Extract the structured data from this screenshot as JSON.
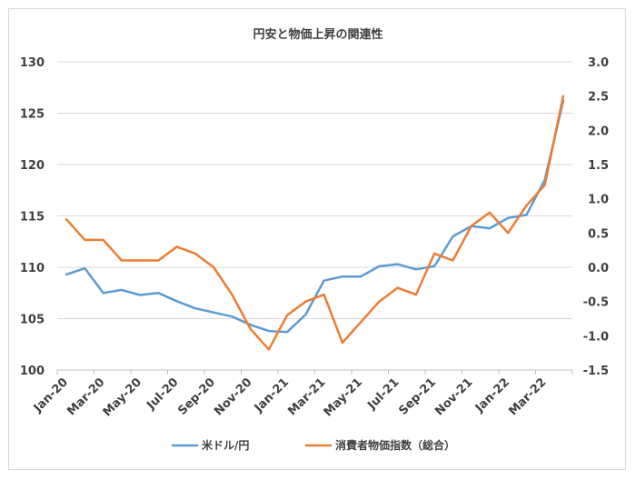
{
  "chart_data": {
    "type": "line",
    "title": "円安と物価上昇の関連性",
    "categories": [
      "Jan-20",
      "Feb-20",
      "Mar-20",
      "Apr-20",
      "May-20",
      "Jun-20",
      "Jul-20",
      "Aug-20",
      "Sep-20",
      "Oct-20",
      "Nov-20",
      "Dec-20",
      "Jan-21",
      "Feb-21",
      "Mar-21",
      "Apr-21",
      "May-21",
      "Jun-21",
      "Jul-21",
      "Aug-21",
      "Sep-21",
      "Oct-21",
      "Nov-21",
      "Dec-21",
      "Jan-22",
      "Feb-22",
      "Mar-22",
      "Apr-22"
    ],
    "x_tick_labels": [
      "Jan-20",
      "Mar-20",
      "May-20",
      "Jul-20",
      "Sep-20",
      "Nov-20",
      "Jan-21",
      "Mar-21",
      "May-21",
      "Jul-21",
      "Sep-21",
      "Nov-21",
      "Jan-22",
      "Mar-22"
    ],
    "left_axis": {
      "min": 100,
      "max": 130,
      "step": 5,
      "ticks": [
        "100",
        "105",
        "110",
        "115",
        "120",
        "125",
        "130"
      ]
    },
    "right_axis": {
      "min": -1.5,
      "max": 3.0,
      "step": 0.5,
      "ticks": [
        "-1.5",
        "-1.0",
        "-0.5",
        "0.0",
        "0.5",
        "1.0",
        "1.5",
        "2.0",
        "2.5",
        "3.0"
      ]
    },
    "grid": true,
    "legend_position": "bottom",
    "series": [
      {
        "name": "米ドル/円",
        "axis": "left",
        "color": "#5b9bd5",
        "values": [
          109.3,
          109.9,
          107.5,
          107.8,
          107.3,
          107.5,
          106.7,
          106.0,
          105.6,
          105.2,
          104.4,
          103.8,
          103.7,
          105.4,
          108.7,
          109.1,
          109.1,
          110.1,
          110.3,
          109.8,
          110.1,
          113.0,
          114.0,
          113.8,
          114.8,
          115.1,
          118.5,
          126.2
        ]
      },
      {
        "name": "消費者物価指数（総合）",
        "axis": "right",
        "color": "#ed7d31",
        "values": [
          0.7,
          0.4,
          0.4,
          0.1,
          0.1,
          0.1,
          0.3,
          0.2,
          0.0,
          -0.4,
          -0.9,
          -1.2,
          -0.7,
          -0.5,
          -0.4,
          -1.1,
          -0.8,
          -0.5,
          -0.3,
          -0.4,
          0.2,
          0.1,
          0.6,
          0.8,
          0.5,
          0.9,
          1.2,
          2.5
        ]
      }
    ]
  }
}
